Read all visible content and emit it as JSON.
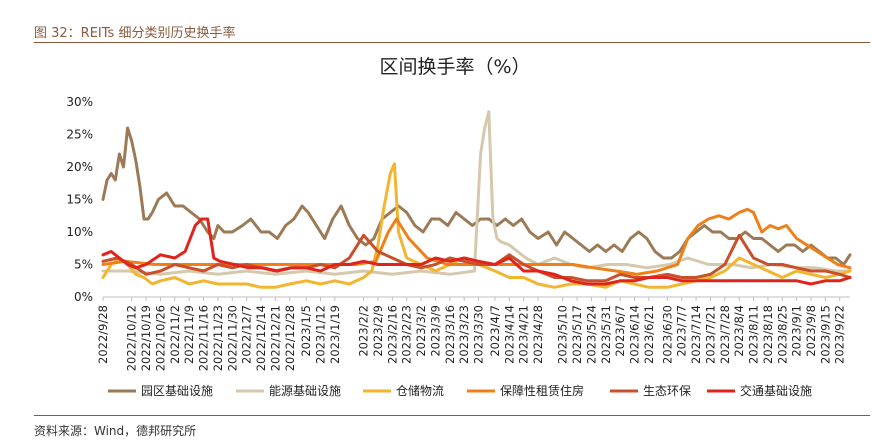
{
  "header": {
    "caption": "图 32：REITs 细分类别历史换手率"
  },
  "footer": {
    "source": "资料来源：Wind，德邦研究所"
  },
  "chart_data": {
    "type": "line",
    "title": "区间换手率（%）",
    "yticks": [
      "0%",
      "5%",
      "10%",
      "15%",
      "20%",
      "25%",
      "30%"
    ],
    "ylim": [
      0,
      30
    ],
    "xlim": [
      "2022-09-28",
      "2023-09-27"
    ],
    "x_tick_labels": [
      "2022/9/28",
      "2022/10/12",
      "2022/10/19",
      "2022/10/26",
      "2022/11/2",
      "2022/11/9",
      "2022/11/16",
      "2022/11/23",
      "2022/11/30",
      "2022/12/7",
      "2022/12/14",
      "2022/12/21",
      "2022/12/28",
      "2023/1/5",
      "2023/1/12",
      "2023/1/19",
      "2023/2/2",
      "2023/2/9",
      "2023/2/16",
      "2023/2/23",
      "2023/3/2",
      "2023/3/9",
      "2023/3/16",
      "2023/3/23",
      "2023/3/30",
      "2023/4/7",
      "2023/4/14",
      "2023/4/21",
      "2023/4/28",
      "2023/5/10",
      "2023/5/17",
      "2023/5/24",
      "2023/5/31",
      "2023/6/7",
      "2023/6/14",
      "2023/6/21",
      "2023/6/30",
      "2023/7/7",
      "2023/7/14",
      "2023/7/21",
      "2023/7/28",
      "2023/8/4",
      "2023/8/11",
      "2023/8/18",
      "2023/8/25",
      "2023/9/1",
      "2023/9/8",
      "2023/9/15",
      "2023/9/22"
    ],
    "grid": false,
    "legend_position": "bottom",
    "series": [
      {
        "name": "园区基础设施",
        "color": "#9c7a55",
        "x": [
          "2022-09-28",
          "2022-09-30",
          "2022-10-02",
          "2022-10-04",
          "2022-10-06",
          "2022-10-08",
          "2022-10-10",
          "2022-10-12",
          "2022-10-14",
          "2022-10-16",
          "2022-10-18",
          "2022-10-20",
          "2022-10-22",
          "2022-10-25",
          "2022-10-29",
          "2022-11-02",
          "2022-11-06",
          "2022-11-10",
          "2022-11-14",
          "2022-11-18",
          "2022-11-21",
          "2022-11-23",
          "2022-11-26",
          "2022-11-30",
          "2022-12-05",
          "2022-12-09",
          "2022-12-14",
          "2022-12-18",
          "2022-12-22",
          "2022-12-26",
          "2022-12-30",
          "2023-01-03",
          "2023-01-06",
          "2023-01-10",
          "2023-01-14",
          "2023-01-18",
          "2023-01-22",
          "2023-01-26",
          "2023-01-30",
          "2023-02-03",
          "2023-02-07",
          "2023-02-11",
          "2023-02-15",
          "2023-02-19",
          "2023-02-23",
          "2023-02-27",
          "2023-03-03",
          "2023-03-07",
          "2023-03-11",
          "2023-03-15",
          "2023-03-19",
          "2023-03-23",
          "2023-03-27",
          "2023-03-31",
          "2023-04-04",
          "2023-04-08",
          "2023-04-12",
          "2023-04-16",
          "2023-04-20",
          "2023-04-24",
          "2023-04-28",
          "2023-05-03",
          "2023-05-07",
          "2023-05-11",
          "2023-05-15",
          "2023-05-19",
          "2023-05-23",
          "2023-05-27",
          "2023-05-31",
          "2023-06-04",
          "2023-06-08",
          "2023-06-12",
          "2023-06-16",
          "2023-06-20",
          "2023-06-24",
          "2023-06-28",
          "2023-07-02",
          "2023-07-06",
          "2023-07-10",
          "2023-07-14",
          "2023-07-18",
          "2023-07-22",
          "2023-07-26",
          "2023-07-30",
          "2023-08-03",
          "2023-08-07",
          "2023-08-11",
          "2023-08-15",
          "2023-08-19",
          "2023-08-23",
          "2023-08-27",
          "2023-08-31",
          "2023-09-04",
          "2023-09-08",
          "2023-09-12",
          "2023-09-16",
          "2023-09-20",
          "2023-09-24",
          "2023-09-27"
        ],
        "y": [
          15,
          18,
          19,
          18,
          22,
          20,
          26,
          24,
          21,
          17,
          12,
          12,
          13,
          15,
          16,
          14,
          14,
          13,
          12,
          10,
          9,
          11,
          10,
          10,
          11,
          12,
          10,
          10,
          9,
          11,
          12,
          14,
          13,
          11,
          9,
          12,
          14,
          11,
          9,
          8,
          9,
          12,
          13,
          14,
          13,
          11,
          10,
          12,
          12,
          11,
          13,
          12,
          11,
          12,
          12,
          11,
          12,
          11,
          12,
          10,
          9,
          10,
          8,
          10,
          9,
          8,
          7,
          8,
          7,
          8,
          7,
          9,
          10,
          9,
          7,
          6,
          6,
          7,
          9,
          10,
          11,
          10,
          10,
          9,
          9,
          10,
          9,
          9,
          8,
          7,
          8,
          8,
          7,
          8,
          7,
          6,
          6,
          5,
          6.5
        ]
      },
      {
        "name": "能源基础设施",
        "color": "#d6c8ad",
        "x": [
          "2022-09-28",
          "2022-10-10",
          "2022-10-26",
          "2022-11-09",
          "2022-11-23",
          "2022-12-07",
          "2022-12-21",
          "2023-01-05",
          "2023-01-19",
          "2023-02-02",
          "2023-02-16",
          "2023-03-02",
          "2023-03-16",
          "2023-03-28",
          "2023-03-31",
          "2023-04-02",
          "2023-04-04",
          "2023-04-06",
          "2023-04-08",
          "2023-04-10",
          "2023-04-14",
          "2023-04-18",
          "2023-04-22",
          "2023-04-28",
          "2023-05-06",
          "2023-05-14",
          "2023-05-22",
          "2023-06-01",
          "2023-06-10",
          "2023-06-20",
          "2023-07-01",
          "2023-07-10",
          "2023-07-20",
          "2023-08-01",
          "2023-08-10",
          "2023-08-20",
          "2023-09-01",
          "2023-09-10",
          "2023-09-20",
          "2023-09-27"
        ],
        "y": [
          4,
          4,
          3.5,
          4,
          3.5,
          4,
          3.5,
          4,
          3.5,
          4,
          3.5,
          4,
          3.5,
          4,
          22,
          26,
          28.5,
          12,
          9,
          8.5,
          8,
          7,
          6,
          5,
          6,
          5,
          4.5,
          5,
          5,
          4.5,
          5,
          6,
          5,
          5,
          4.5,
          5,
          4.5,
          4.5,
          4,
          4
        ]
      },
      {
        "name": "仓储物流",
        "color": "#f2b530",
        "x": [
          "2022-09-28",
          "2022-10-02",
          "2022-10-06",
          "2022-10-10",
          "2022-10-14",
          "2022-10-18",
          "2022-10-22",
          "2022-10-26",
          "2022-11-02",
          "2022-11-09",
          "2022-11-16",
          "2022-11-23",
          "2022-11-30",
          "2022-12-07",
          "2022-12-14",
          "2022-12-21",
          "2022-12-28",
          "2023-01-05",
          "2023-01-12",
          "2023-01-19",
          "2023-01-26",
          "2023-02-02",
          "2023-02-06",
          "2023-02-09",
          "2023-02-12",
          "2023-02-15",
          "2023-02-17",
          "2023-02-19",
          "2023-02-23",
          "2023-03-02",
          "2023-03-09",
          "2023-03-16",
          "2023-03-23",
          "2023-03-30",
          "2023-04-07",
          "2023-04-14",
          "2023-04-21",
          "2023-04-28",
          "2023-05-06",
          "2023-05-14",
          "2023-05-22",
          "2023-05-31",
          "2023-06-07",
          "2023-06-14",
          "2023-06-21",
          "2023-06-30",
          "2023-07-07",
          "2023-07-14",
          "2023-07-21",
          "2023-07-28",
          "2023-08-04",
          "2023-08-11",
          "2023-08-18",
          "2023-08-25",
          "2023-09-01",
          "2023-09-08",
          "2023-09-15",
          "2023-09-22",
          "2023-09-27"
        ],
        "y": [
          3,
          5,
          6,
          5,
          3.5,
          3,
          2,
          2.5,
          3,
          2,
          2.5,
          2,
          2,
          2,
          1.5,
          1.5,
          2,
          2.5,
          2,
          2.5,
          2,
          3,
          4,
          8,
          14,
          19,
          20.5,
          10,
          6,
          5,
          4,
          5,
          6,
          5,
          4,
          3,
          3,
          2,
          1.5,
          2,
          2,
          1.5,
          2.5,
          2,
          1.5,
          1.5,
          2,
          2.5,
          3,
          4,
          6,
          5,
          4,
          3,
          4,
          3.5,
          3,
          3.5,
          4
        ]
      },
      {
        "name": "保障性租赁住房",
        "color": "#f07f18",
        "x": [
          "2022-09-28",
          "2022-10-09",
          "2022-10-23",
          "2022-11-06",
          "2022-11-20",
          "2022-12-04",
          "2022-12-18",
          "2023-01-01",
          "2023-01-15",
          "2023-01-29",
          "2023-02-08",
          "2023-02-14",
          "2023-02-18",
          "2023-02-24",
          "2023-03-05",
          "2023-03-15",
          "2023-03-25",
          "2023-04-05",
          "2023-04-15",
          "2023-04-25",
          "2023-05-05",
          "2023-05-15",
          "2023-05-25",
          "2023-06-05",
          "2023-06-15",
          "2023-06-25",
          "2023-07-05",
          "2023-07-10",
          "2023-07-15",
          "2023-07-20",
          "2023-07-25",
          "2023-07-30",
          "2023-08-04",
          "2023-08-08",
          "2023-08-11",
          "2023-08-15",
          "2023-08-19",
          "2023-08-23",
          "2023-08-27",
          "2023-09-01",
          "2023-09-06",
          "2023-09-11",
          "2023-09-16",
          "2023-09-21",
          "2023-09-27"
        ],
        "y": [
          5,
          5.5,
          5,
          5,
          5,
          5,
          5,
          5,
          5,
          5,
          5.5,
          10,
          12,
          9,
          6,
          5,
          5,
          5,
          5,
          5,
          5,
          5,
          4.5,
          4,
          3.5,
          4,
          5,
          9,
          11,
          12,
          12.5,
          12,
          13,
          13.5,
          13,
          10,
          11,
          10.5,
          11,
          9,
          8,
          7,
          6,
          5,
          4.5
        ]
      },
      {
        "name": "生态环保",
        "color": "#c8502a",
        "x": [
          "2022-09-28",
          "2022-10-05",
          "2022-10-12",
          "2022-10-19",
          "2022-10-26",
          "2022-11-02",
          "2022-11-09",
          "2022-11-16",
          "2022-11-23",
          "2022-11-30",
          "2022-12-07",
          "2022-12-14",
          "2022-12-21",
          "2022-12-28",
          "2023-01-05",
          "2023-01-12",
          "2023-01-19",
          "2023-01-26",
          "2023-02-02",
          "2023-02-09",
          "2023-02-16",
          "2023-02-23",
          "2023-03-02",
          "2023-03-09",
          "2023-03-16",
          "2023-03-23",
          "2023-03-30",
          "2023-04-07",
          "2023-04-14",
          "2023-04-21",
          "2023-04-28",
          "2023-05-06",
          "2023-05-14",
          "2023-05-22",
          "2023-05-31",
          "2023-06-07",
          "2023-06-14",
          "2023-06-21",
          "2023-06-30",
          "2023-07-07",
          "2023-07-14",
          "2023-07-21",
          "2023-07-28",
          "2023-08-04",
          "2023-08-11",
          "2023-08-18",
          "2023-08-25",
          "2023-09-01",
          "2023-09-08",
          "2023-09-15",
          "2023-09-22",
          "2023-09-27"
        ],
        "y": [
          5.5,
          6,
          5,
          3.5,
          4,
          5,
          4.5,
          4,
          5,
          4.5,
          5,
          4.5,
          4,
          4.5,
          4.5,
          5,
          4.5,
          6,
          9.5,
          7,
          6,
          5,
          4.5,
          5,
          6,
          5.5,
          5,
          5,
          6.5,
          5,
          4,
          3,
          3,
          2.5,
          2.5,
          3.5,
          3,
          3,
          3.5,
          3,
          3,
          3.5,
          5,
          9.5,
          6,
          5,
          5,
          4.5,
          4,
          4,
          3.5,
          3
        ]
      },
      {
        "name": "交通基础设施",
        "color": "#e0241b",
        "x": [
          "2022-09-28",
          "2022-10-02",
          "2022-10-06",
          "2022-10-10",
          "2022-10-14",
          "2022-10-19",
          "2022-10-26",
          "2022-11-02",
          "2022-11-07",
          "2022-11-12",
          "2022-11-15",
          "2022-11-18",
          "2022-11-21",
          "2022-11-24",
          "2022-12-01",
          "2022-12-08",
          "2022-12-15",
          "2022-12-22",
          "2022-12-29",
          "2023-01-05",
          "2023-01-12",
          "2023-01-19",
          "2023-01-26",
          "2023-02-02",
          "2023-02-09",
          "2023-02-16",
          "2023-02-23",
          "2023-03-02",
          "2023-03-09",
          "2023-03-16",
          "2023-03-23",
          "2023-03-30",
          "2023-04-07",
          "2023-04-14",
          "2023-04-21",
          "2023-04-28",
          "2023-05-06",
          "2023-05-14",
          "2023-05-22",
          "2023-05-31",
          "2023-06-07",
          "2023-06-14",
          "2023-06-21",
          "2023-06-30",
          "2023-07-07",
          "2023-07-14",
          "2023-07-21",
          "2023-07-28",
          "2023-08-04",
          "2023-08-11",
          "2023-08-18",
          "2023-08-25",
          "2023-09-01",
          "2023-09-08",
          "2023-09-15",
          "2023-09-22",
          "2023-09-27"
        ],
        "y": [
          6.5,
          7,
          6,
          5,
          4.5,
          5,
          6.5,
          6,
          7,
          11,
          12,
          12,
          6,
          5.5,
          5,
          4.5,
          4.5,
          4,
          4.5,
          4.5,
          4,
          5,
          5,
          5.5,
          5,
          5,
          5,
          5,
          6,
          5.5,
          6,
          5.5,
          5,
          6,
          4,
          4,
          3.5,
          2.5,
          2,
          2,
          2.5,
          2.5,
          3,
          3,
          2.5,
          2.5,
          2.5,
          2.5,
          2.5,
          2.5,
          2.5,
          2.5,
          2.5,
          2,
          2.5,
          2.5,
          3
        ]
      }
    ]
  }
}
